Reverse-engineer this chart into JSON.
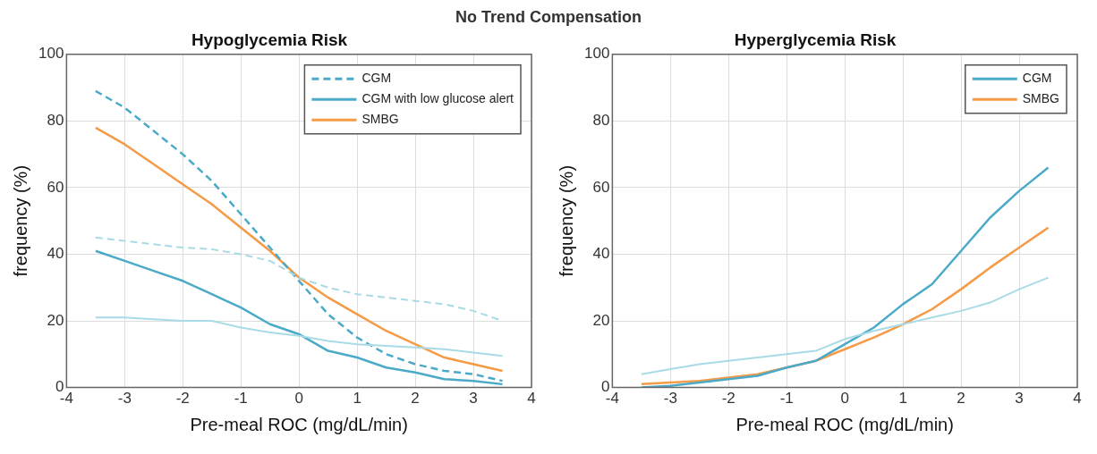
{
  "chart_data": [
    {
      "type": "line",
      "title": "Hypoglycemia Risk",
      "xlabel": "Pre-meal ROC (mg/dL/min)",
      "ylabel": "frequency (%)",
      "annotations": [
        "No Trend Compensation"
      ],
      "x": [
        -3.5,
        -3,
        -2.5,
        -2,
        -1.5,
        -1,
        -0.5,
        0,
        0.5,
        1,
        1.5,
        2,
        2.5,
        3,
        3.5
      ],
      "xlim": [
        -4,
        4
      ],
      "xticks": [
        -4,
        -3,
        -2,
        -1,
        0,
        1,
        2,
        3,
        4
      ],
      "ylim": [
        0,
        100
      ],
      "yticks": [
        0,
        20,
        40,
        60,
        80,
        100
      ],
      "grid": true,
      "legend": "top right",
      "marker": "none",
      "series": [
        {
          "color": "#a8dbe6",
          "line_style": "dashed",
          "values": [
            45,
            44,
            43,
            42,
            41.5,
            40,
            38,
            33,
            30,
            28,
            27,
            26,
            25,
            23,
            20
          ]
        },
        {
          "color": "#a8dbe6",
          "line_style": "solid",
          "values": [
            21,
            21,
            20.5,
            20,
            20,
            18,
            16.5,
            15.5,
            14,
            13,
            12.5,
            12,
            11.5,
            10.5,
            9.5
          ]
        },
        {
          "name": "CGM",
          "color": "#4aaac8",
          "line_style": "dashed",
          "values": [
            89,
            84,
            77,
            70,
            62,
            52,
            42,
            32,
            22,
            15,
            10,
            7,
            5,
            4,
            2
          ]
        },
        {
          "name": "CGM with low glucose alert",
          "color": "#4aaac8",
          "line_style": "solid",
          "values": [
            41,
            38,
            35,
            32,
            28,
            24,
            19,
            16,
            11,
            9,
            6,
            4.5,
            2.5,
            2,
            1
          ]
        },
        {
          "name": "SMBG",
          "color": "#f59a45",
          "line_style": "solid",
          "values": [
            78,
            73,
            67,
            61,
            55,
            48,
            41,
            33,
            27,
            22,
            17,
            13,
            9,
            7,
            5
          ]
        }
      ]
    },
    {
      "type": "line",
      "title": "Hyperglycemia Risk",
      "xlabel": "Pre-meal ROC (mg/dL/min)",
      "ylabel": "frequency (%)",
      "x": [
        -3.5,
        -3,
        -2.5,
        -2,
        -1.5,
        -1,
        -0.5,
        0,
        0.5,
        1,
        1.5,
        2,
        2.5,
        3,
        3.5
      ],
      "xlim": [
        -4,
        4
      ],
      "xticks": [
        -4,
        -3,
        -2,
        -1,
        0,
        1,
        2,
        3,
        4
      ],
      "ylim": [
        0,
        100
      ],
      "yticks": [
        0,
        20,
        40,
        60,
        80,
        100
      ],
      "grid": true,
      "legend": "top right",
      "marker": "none",
      "series": [
        {
          "color": "#a8dbe6",
          "line_style": "solid",
          "values": [
            4,
            5.5,
            7,
            8,
            9,
            10,
            11,
            14.5,
            17,
            19,
            21,
            23,
            25.5,
            29.5,
            33
          ]
        },
        {
          "name": "CGM",
          "color": "#4aaac8",
          "line_style": "solid",
          "values": [
            0,
            0.5,
            1.5,
            2.5,
            3.5,
            6,
            8,
            13,
            18,
            25,
            31,
            41,
            51,
            59,
            66
          ]
        },
        {
          "name": "SMBG",
          "color": "#f59a45",
          "line_style": "solid",
          "values": [
            1,
            1.5,
            2,
            3,
            4,
            6,
            8,
            11.5,
            15,
            19,
            23.5,
            29.5,
            36,
            42,
            48
          ]
        }
      ]
    }
  ]
}
